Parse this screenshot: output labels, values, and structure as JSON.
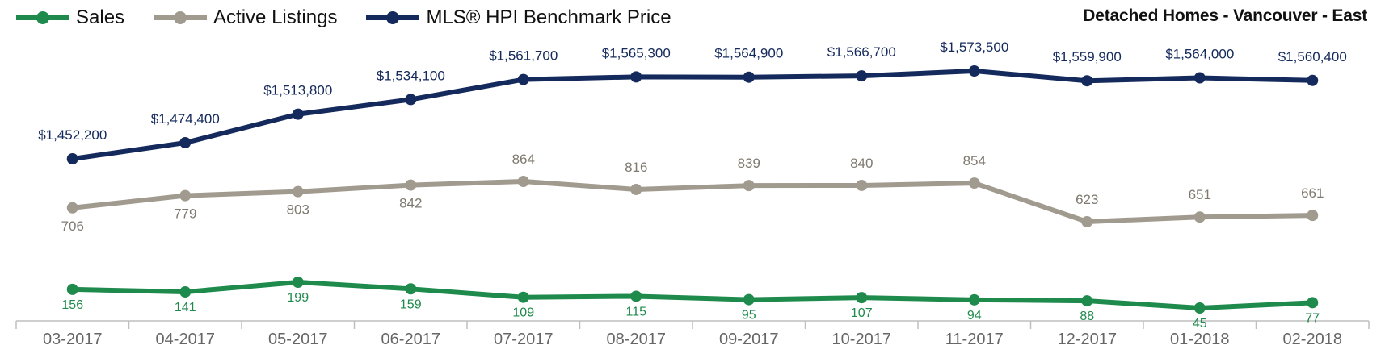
{
  "chart_data": {
    "type": "line",
    "title": "Detached Homes - Vancouver - East",
    "categories": [
      "03-2017",
      "04-2017",
      "05-2017",
      "06-2017",
      "07-2017",
      "08-2017",
      "09-2017",
      "10-2017",
      "11-2017",
      "12-2017",
      "01-2018",
      "02-2018"
    ],
    "series": [
      {
        "name": "Sales",
        "color": "#1e8a4c",
        "values": [
          156,
          141,
          199,
          159,
          109,
          115,
          95,
          107,
          94,
          88,
          45,
          77
        ],
        "labels": [
          "156",
          "141",
          "199",
          "159",
          "109",
          "115",
          "95",
          "107",
          "94",
          "88",
          "45",
          "77"
        ]
      },
      {
        "name": "Active Listings",
        "color": "#a09a8f",
        "values": [
          706,
          779,
          803,
          842,
          864,
          816,
          839,
          840,
          854,
          623,
          651,
          661
        ],
        "labels": [
          "706",
          "779",
          "803",
          "842",
          "864",
          "816",
          "839",
          "840",
          "854",
          "623",
          "651",
          "661"
        ]
      },
      {
        "name": "MLS® HPI Benchmark Price",
        "color": "#152a5c",
        "values": [
          1452200,
          1474400,
          1513800,
          1534100,
          1561700,
          1565300,
          1564900,
          1566700,
          1573500,
          1559900,
          1564000,
          1560400
        ],
        "labels": [
          "$1,452,200",
          "$1,474,400",
          "$1,513,800",
          "$1,534,100",
          "$1,561,700",
          "$1,565,300",
          "$1,564,900",
          "$1,566,700",
          "$1,573,500",
          "$1,559,900",
          "$1,564,000",
          "$1,560,400"
        ]
      }
    ],
    "legend_position": "top-left",
    "grid": false
  }
}
